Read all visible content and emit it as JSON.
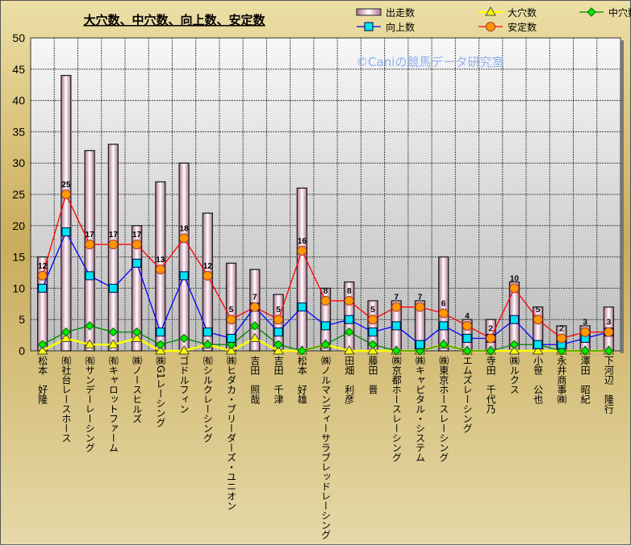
{
  "chart_data": {
    "type": "bar",
    "title": "大穴数、中穴数、向上数、安定数",
    "watermark": "©Caniの競馬データ研究室",
    "xlabel": "",
    "ylabel": "",
    "ylim": [
      0,
      50
    ],
    "yticks": [
      "0",
      "5",
      "10",
      "15",
      "20",
      "25",
      "30",
      "35",
      "40",
      "45",
      "50"
    ],
    "grid": true,
    "legend_position": "top-right",
    "categories": [
      "松本　好隆",
      "㈲社台レースホース",
      "㈲サンデーレーシング",
      "㈲キャロットファーム",
      "㈱ノースヒルズ",
      "㈱G1レーシング",
      "ゴドルフィン",
      "㈲シルクレーシング",
      "㈱ヒダカ・ブリーダーズ・ユニオン",
      "吉田　照哉",
      "吉田　千津",
      "松本　好雄",
      "㈱ノルマンディーサラブレッドレーシング",
      "田畑　利彦",
      "藤田　晋",
      "㈱京都ホースレーシング",
      "㈱キャピタル・システム",
      "㈱東京ホースレーシング",
      "エムズレーシング",
      "寺田　千代乃",
      "㈱ルクス",
      "小笹　公也",
      "永井商事㈱",
      "澤田　昭紀",
      "下河辺　隆行"
    ],
    "series": [
      {
        "name": "出走数",
        "type": "bar",
        "color": "#f2d9e6",
        "values": [
          15,
          44,
          32,
          33,
          20,
          27,
          30,
          22,
          14,
          13,
          9,
          26,
          10,
          11,
          8,
          8,
          8,
          15,
          5,
          5,
          11,
          7,
          4,
          4,
          7
        ]
      },
      {
        "name": "大穴数",
        "type": "line",
        "marker": "triangle",
        "color": "#ffff00",
        "values": [
          0,
          2,
          1,
          1,
          2,
          0,
          0,
          1,
          0,
          2,
          0,
          0,
          1,
          0,
          0,
          0,
          0,
          1,
          0,
          0,
          0,
          0,
          0,
          0,
          0
        ]
      },
      {
        "name": "中穴数",
        "type": "line",
        "marker": "diamond",
        "color": "#008000",
        "values": [
          1,
          3,
          4,
          3,
          3,
          1,
          2,
          1,
          1,
          4,
          1,
          0,
          1,
          3,
          1,
          0,
          0,
          1,
          0,
          0,
          1,
          1,
          0,
          0,
          0
        ]
      },
      {
        "name": "向上数",
        "type": "line",
        "marker": "square",
        "color": "#0000ff",
        "values": [
          10,
          19,
          12,
          10,
          14,
          3,
          12,
          3,
          2,
          7,
          3,
          7,
          4,
          5,
          3,
          4,
          1,
          4,
          2,
          2,
          5,
          1,
          1,
          2,
          3
        ]
      },
      {
        "name": "安定数",
        "type": "line",
        "marker": "circle",
        "color": "#ff0000",
        "values": [
          12,
          25,
          17,
          17,
          17,
          13,
          18,
          12,
          5,
          7,
          5,
          16,
          8,
          8,
          5,
          7,
          7,
          6,
          4,
          2,
          10,
          5,
          2,
          3,
          3
        ]
      }
    ]
  }
}
